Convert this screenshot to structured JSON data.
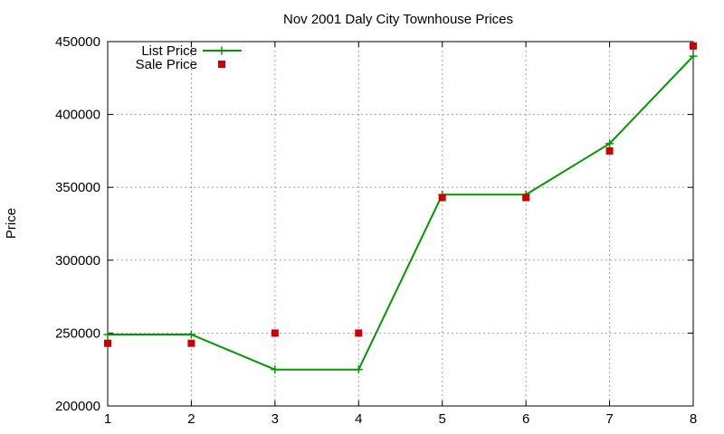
{
  "chart_data": {
    "type": "line",
    "title": "Nov 2001 Daly City Townhouse Prices",
    "xlabel": "",
    "ylabel": "Price",
    "x": [
      1,
      2,
      3,
      4,
      5,
      6,
      7,
      8
    ],
    "xlim": [
      1,
      8
    ],
    "ylim": [
      200000,
      450000
    ],
    "xticks": [
      "1",
      "2",
      "3",
      "4",
      "5",
      "6",
      "7",
      "8"
    ],
    "yticks": [
      "200000",
      "250000",
      "300000",
      "350000",
      "400000",
      "450000"
    ],
    "grid": true,
    "legend_position": "top-left",
    "series": [
      {
        "name": "List Price",
        "style": "line+points",
        "marker": "plus",
        "color": "#009900",
        "values": [
          249000,
          249000,
          225000,
          225000,
          345000,
          345000,
          380000,
          440000
        ]
      },
      {
        "name": "Sale Price",
        "style": "points",
        "marker": "square",
        "color": "#cc0000",
        "values": [
          243000,
          243000,
          250000,
          250000,
          343000,
          343000,
          375000,
          447000
        ]
      }
    ]
  }
}
